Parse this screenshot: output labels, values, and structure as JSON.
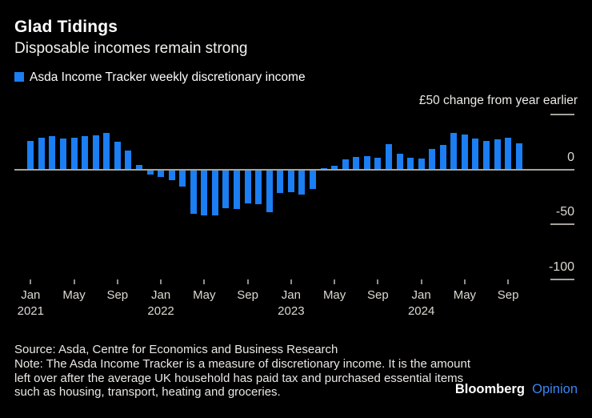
{
  "header": {
    "title": "Glad Tidings",
    "subtitle": "Disposable incomes remain strong"
  },
  "legend": {
    "label": "Asda Income Tracker weekly discretionary income"
  },
  "axis_note": "£50 change from year earlier",
  "chart_data": {
    "type": "bar",
    "title": "Glad Tidings",
    "series_name": "Asda Income Tracker weekly discretionary income",
    "ylabel": "£ change from year earlier",
    "ylim": [
      -100,
      50
    ],
    "bar_color": "#1b7ef2",
    "months": [
      "Jan 2021",
      "Feb 2021",
      "Mar 2021",
      "Apr 2021",
      "May 2021",
      "Jun 2021",
      "Jul 2021",
      "Aug 2021",
      "Sep 2021",
      "Oct 2021",
      "Nov 2021",
      "Dec 2021",
      "Jan 2022",
      "Feb 2022",
      "Mar 2022",
      "Apr 2022",
      "May 2022",
      "Jun 2022",
      "Jul 2022",
      "Aug 2022",
      "Sep 2022",
      "Oct 2022",
      "Nov 2022",
      "Dec 2022",
      "Jan 2023",
      "Feb 2023",
      "Mar 2023",
      "Apr 2023",
      "May 2023",
      "Jun 2023",
      "Jul 2023",
      "Aug 2023",
      "Sep 2023",
      "Oct 2023",
      "Nov 2023",
      "Dec 2023",
      "Jan 2024",
      "Feb 2024",
      "Mar 2024",
      "Apr 2024",
      "May 2024",
      "Jun 2024",
      "Jul 2024",
      "Aug 2024",
      "Sep 2024",
      "Oct 2024"
    ],
    "values": [
      26,
      29,
      30,
      28,
      29,
      30.5,
      31,
      33,
      25.5,
      17,
      4.5,
      -4.5,
      -7,
      -9.5,
      -15.5,
      -40,
      -42,
      -42,
      -35,
      -35.5,
      -31,
      -31.5,
      -38.5,
      -21.5,
      -20.5,
      -23,
      -17.5,
      1.5,
      3.5,
      9.5,
      11.5,
      12.5,
      11,
      23,
      14,
      11,
      10,
      19,
      22.5,
      33,
      31.5,
      28,
      26,
      27.5,
      29,
      23.5
    ],
    "x_ticks": [
      {
        "index": 0,
        "label": "Jan",
        "year": "2021"
      },
      {
        "index": 4,
        "label": "May"
      },
      {
        "index": 8,
        "label": "Sep"
      },
      {
        "index": 12,
        "label": "Jan",
        "year": "2022"
      },
      {
        "index": 16,
        "label": "May"
      },
      {
        "index": 20,
        "label": "Sep"
      },
      {
        "index": 24,
        "label": "Jan",
        "year": "2023"
      },
      {
        "index": 28,
        "label": "May"
      },
      {
        "index": 32,
        "label": "Sep"
      },
      {
        "index": 36,
        "label": "Jan",
        "year": "2024"
      },
      {
        "index": 40,
        "label": "May"
      },
      {
        "index": 44,
        "label": "Sep"
      }
    ],
    "y_ticks": [
      {
        "value": 50,
        "label": ""
      },
      {
        "value": 0,
        "label": "0"
      },
      {
        "value": -50,
        "label": "-50"
      },
      {
        "value": -100,
        "label": "-100"
      }
    ],
    "grid": "right-side ticks only, zero baseline full width",
    "legend_position": "top-left"
  },
  "footer": {
    "source": "Source: Asda, Centre for Economics and Business Research",
    "note": "Note: The Asda Income Tracker is a measure of discretionary income. It is the amount left over after the average UK household has paid tax and purchased essential items such as housing, transport, heating and groceries."
  },
  "logo": {
    "brand": "Bloomberg",
    "suffix": "Opinion"
  }
}
